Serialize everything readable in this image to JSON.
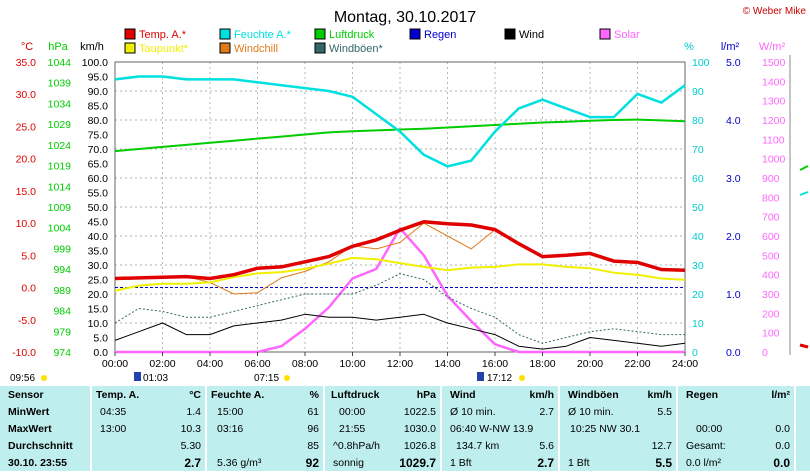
{
  "header": {
    "title": "Montag, 30.10.2017",
    "copyright": "© Weber Mike",
    "legend": [
      {
        "label": "Temp. A.*",
        "color": "#e00000"
      },
      {
        "label": "Feuchte A.*",
        "color": "#00e0e0"
      },
      {
        "label": "Luftdruck",
        "color": "#00cc00"
      },
      {
        "label": "Regen",
        "color": "#0000cc"
      },
      {
        "label": "Wind",
        "color": "#000000"
      },
      {
        "label": "Solar",
        "color": "#ff66ff"
      },
      {
        "label": "Taupunkt*",
        "color": "#f0f000"
      },
      {
        "label": "Windchill",
        "color": "#e07a1a"
      },
      {
        "label": "Windböen*",
        "color": "#336666"
      }
    ]
  },
  "axes": {
    "temp": {
      "unit": "°C",
      "ticks": [
        "35.0",
        "30.0",
        "25.0",
        "20.0",
        "15.0",
        "10.0",
        "5.0",
        "0.0",
        "-5.0",
        "-10.0"
      ],
      "range": [
        -10,
        35
      ]
    },
    "pressure": {
      "unit": "hPa",
      "ticks": [
        "1044",
        "1039",
        "1034",
        "1029",
        "1024",
        "1019",
        "1014",
        "1009",
        "1004",
        "999",
        "994",
        "989",
        "984",
        "979",
        "974"
      ],
      "range": [
        974,
        1044
      ]
    },
    "wind": {
      "unit": "km/h",
      "ticks": [
        "100.0",
        "95.0",
        "90.0",
        "85.0",
        "80.0",
        "75.0",
        "70.0",
        "65.0",
        "60.0",
        "55.0",
        "50.0",
        "45.0",
        "40.0",
        "35.0",
        "30.0",
        "25.0",
        "20.0",
        "15.0",
        "10.0",
        "5.0",
        "0.0"
      ],
      "range": [
        0,
        100
      ]
    },
    "humidity": {
      "unit": "%",
      "ticks": [
        "100",
        "90",
        "80",
        "70",
        "60",
        "50",
        "40",
        "30",
        "20",
        "10",
        "0"
      ],
      "range": [
        0,
        100
      ]
    },
    "rain": {
      "unit": "l/m²",
      "ticks": [
        "5.0",
        "4.0",
        "3.0",
        "2.0",
        "1.0",
        "0.0"
      ],
      "range": [
        0,
        5
      ]
    },
    "solar": {
      "unit": "W/m²",
      "ticks": [
        "1500",
        "1400",
        "1300",
        "1200",
        "1100",
        "1000",
        "900",
        "800",
        "700",
        "600",
        "500",
        "400",
        "300",
        "200",
        "100",
        "0"
      ],
      "range": [
        0,
        1500
      ]
    },
    "x_ticks": [
      "00:00",
      "02:00",
      "04:00",
      "06:00",
      "08:00",
      "10:00",
      "12:00",
      "14:00",
      "16:00",
      "18:00",
      "20:00",
      "22:00",
      "24:00"
    ]
  },
  "sun": {
    "dawn": "09:56",
    "sunrise": "01:03",
    "noon": "07:15",
    "sunset": "17:12"
  },
  "chart_data": {
    "type": "line",
    "x_label": "",
    "x": [
      0,
      1,
      2,
      3,
      4,
      5,
      6,
      7,
      8,
      9,
      10,
      11,
      12,
      13,
      14,
      15,
      16,
      17,
      18,
      19,
      20,
      21,
      22,
      23,
      24
    ],
    "series": [
      {
        "name": "Temp. A.*",
        "unit": "°C",
        "axis": "temp",
        "values": [
          1.4,
          1.5,
          1.6,
          1.7,
          1.4,
          2.0,
          3.0,
          3.2,
          4.0,
          4.8,
          6.4,
          7.4,
          8.9,
          10.2,
          9.9,
          9.7,
          9.0,
          6.8,
          4.8,
          5.0,
          5.3,
          4.1,
          3.9,
          2.8,
          2.7
        ]
      },
      {
        "name": "Taupunkt*",
        "unit": "°C",
        "axis": "temp",
        "values": [
          -0.5,
          0.3,
          0.6,
          0.6,
          0.8,
          1.6,
          2.2,
          2.4,
          2.9,
          3.7,
          4.6,
          4.4,
          3.8,
          3.2,
          2.7,
          3.1,
          3.2,
          3.6,
          3.6,
          3.2,
          3.0,
          2.3,
          2.0,
          1.4,
          1.2
        ]
      },
      {
        "name": "Windchill",
        "unit": "°C",
        "axis": "temp",
        "values": [
          1.4,
          1.5,
          1.6,
          1.7,
          0.8,
          -1.0,
          -0.8,
          1.5,
          2.5,
          4.0,
          6.5,
          6.0,
          7.0,
          10.0,
          8.0,
          6.0,
          9.0,
          6.8,
          4.8,
          5.0,
          5.3,
          4.1,
          3.9,
          2.8,
          2.7
        ]
      },
      {
        "name": "Feuchte A.*",
        "unit": "%",
        "axis": "humidity",
        "values": [
          94,
          95,
          95,
          94,
          94,
          94,
          93,
          92,
          91,
          90,
          88,
          82,
          76,
          68,
          64,
          66,
          76,
          84,
          87,
          84,
          81,
          81,
          89,
          86,
          92
        ]
      },
      {
        "name": "Luftdruck",
        "unit": "hPa",
        "axis": "pressure",
        "values": [
          1022.5,
          1023.0,
          1023.5,
          1024.0,
          1024.5,
          1025.0,
          1025.5,
          1026.0,
          1026.5,
          1027.0,
          1027.3,
          1027.5,
          1027.7,
          1027.9,
          1028.2,
          1028.5,
          1028.8,
          1029.1,
          1029.4,
          1029.6,
          1029.8,
          1030.0,
          1030.1,
          1029.9,
          1029.7
        ]
      },
      {
        "name": "Wind",
        "unit": "km/h",
        "axis": "wind",
        "values": [
          4,
          7,
          10,
          6,
          6,
          9,
          10,
          11,
          13,
          12,
          12,
          11,
          12,
          13,
          10,
          8,
          6,
          2,
          1,
          2,
          5,
          4,
          3,
          2,
          3
        ]
      },
      {
        "name": "Windböen*",
        "unit": "km/h",
        "axis": "wind",
        "values": [
          10,
          15,
          14,
          12,
          12,
          14,
          16,
          18,
          20,
          20,
          20,
          23,
          27,
          25,
          19,
          15,
          12,
          6,
          3,
          5,
          7,
          8,
          7,
          6,
          6
        ]
      },
      {
        "name": "Solar",
        "unit": "W/m²",
        "axis": "solar",
        "values": [
          0,
          0,
          0,
          0,
          0,
          0,
          0,
          30,
          120,
          230,
          380,
          430,
          640,
          500,
          290,
          160,
          40,
          0,
          0,
          0,
          0,
          0,
          0,
          0,
          0
        ]
      },
      {
        "name": "Regen",
        "unit": "l/m²",
        "axis": "rain",
        "values": [
          0,
          0,
          0,
          0,
          0,
          0,
          0,
          0,
          0,
          0,
          0,
          0,
          0,
          0,
          0,
          0,
          0,
          0,
          0,
          0,
          0,
          0,
          0,
          0,
          0
        ]
      }
    ],
    "reference_line": {
      "axis": "temp",
      "value": 0
    }
  },
  "tables": [
    {
      "head": [
        "Sensor",
        "",
        ""
      ],
      "rows": [
        [
          "MinWert",
          "",
          ""
        ],
        [
          "MaxWert",
          "",
          ""
        ],
        [
          "Durchschnitt",
          "",
          ""
        ],
        [
          "30.10. 23:55",
          "",
          ""
        ]
      ]
    },
    {
      "head": [
        "Temp. A.",
        "°C"
      ],
      "rows": [
        [
          "04:35",
          "1.4"
        ],
        [
          "13:00",
          "10.3"
        ],
        [
          "",
          "5.30"
        ],
        [
          "",
          "2.7"
        ]
      ]
    },
    {
      "head": [
        "Feuchte A.",
        "%"
      ],
      "rows": [
        [
          "15:00",
          "61"
        ],
        [
          "03:16",
          "96"
        ],
        [
          "",
          "85"
        ],
        [
          "5.36 g/m³",
          "92"
        ]
      ]
    },
    {
      "head": [
        "Luftdruck",
        "hPa"
      ],
      "rows": [
        [
          "00:00",
          "1022.5"
        ],
        [
          "21:55",
          "1030.0"
        ],
        [
          "^0.8hPa/h",
          "1026.8"
        ],
        [
          "sonnig",
          "1029.7"
        ]
      ]
    },
    {
      "head": [
        "Wind",
        "km/h"
      ],
      "rows": [
        [
          "Ø 10 min.",
          "2.7"
        ],
        [
          "06:40  W-NW 13.9",
          ""
        ],
        [
          "134.7 km",
          "5.6"
        ],
        [
          "1 Bft",
          "2.7"
        ]
      ]
    },
    {
      "head": [
        "Windböen",
        "km/h"
      ],
      "rows": [
        [
          "Ø 10 min.",
          "5.5"
        ],
        [
          "10:25      NW 30.1",
          ""
        ],
        [
          "",
          "12.7"
        ],
        [
          "1 Bft",
          "5.5"
        ]
      ]
    },
    {
      "head": [
        "Regen",
        "l/m²"
      ],
      "rows": [
        [
          "",
          ""
        ],
        [
          "00:00",
          "0.0"
        ],
        [
          "Gesamt:",
          "0.0"
        ],
        [
          "0.0 l/m²",
          "0.0"
        ]
      ]
    }
  ]
}
